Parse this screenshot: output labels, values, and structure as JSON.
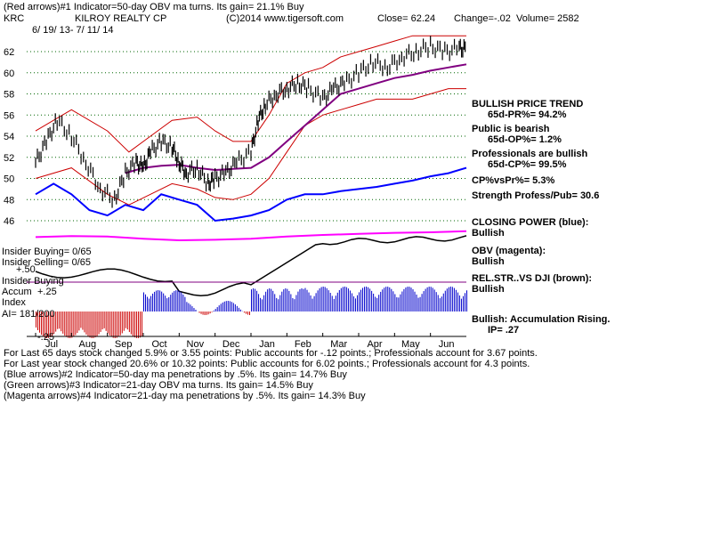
{
  "header": {
    "line1": "(Red arrows)#1 Indicator=50-day OBV ma turns. Its gain= 21.1% Buy",
    "ticker": "KRC",
    "company": "KILROY REALTY CP",
    "copyright": "(C)2014 www.tigersoft.com",
    "close": "Close=  62.24",
    "change": "Change=-.02",
    "volume": "Volume= 2582",
    "daterange": "6/ 19/ 13-  7/ 11/ 14"
  },
  "right_panel": {
    "items": [
      {
        "text": "BULLISH PRICE TREND"
      },
      {
        "text": "65d-PR%= 94.2%"
      },
      {
        "text": "Public is bearish"
      },
      {
        "text": "65d-OP%= 1.2%"
      },
      {
        "text": "Professionals are bullish"
      },
      {
        "text": "65d-CP%= 99.5%"
      },
      {
        "text": "CP%vsPr%=  5.3%"
      },
      {
        "text": "Strength Profess/Pub= 30.6"
      },
      {
        "text": "CLOSING POWER (blue):"
      },
      {
        "text": "Bullish"
      },
      {
        "text": "OBV (magenta):"
      },
      {
        "text": "Bullish"
      },
      {
        "text": "REL.STR..VS DJI (brown):"
      },
      {
        "text": "Bullish"
      },
      {
        "text": "Bullish: Accumulation Rising."
      },
      {
        "text": "IP=  .27"
      }
    ]
  },
  "left_labels": {
    "insider_buying_1": "Insider Buying= 0/65",
    "insider_selling": "Insider Selling= 0/65",
    "plus50": "+.50",
    "insider_buying_2": "Insider Buying",
    "accum": "Accum",
    "plus25": "+.25",
    "index": "Index",
    "ai": "AI= 181/200",
    "minus25": "-.25"
  },
  "footer": {
    "lines": [
      "For Last 65 days stock changed  5.9% or  3.55 points:  Public accounts for -.12 points.;  Professionals account for  3.67 points.",
      "For Last year stock changed  20.6% or  10.32 points:  Public accounts for  6.02 points.;  Professionals account for  4.3 points.",
      "(Blue arrows)#2 Indicator=50-day ma penetrations by .5%. Its gain= 14.7% Buy",
      "(Green arrows)#3 Indicator=21-day OBV ma turns. Its gain= 14.5% Buy",
      "(Magenta arrows)#4 Indicator=21-day ma penetrations by .5%. Its gain= 14.3% Buy"
    ]
  },
  "colors": {
    "price": "#000000",
    "ma50": "#800080",
    "bands": "#cc0000",
    "closing_power": "#0000ff",
    "obv": "#ff00ff",
    "rel_str": "#000000",
    "accum_pos": "#0000cc",
    "accum_neg": "#cc0000",
    "grid": "#006600",
    "hline": "#800080"
  },
  "chart_data": {
    "type": "line",
    "x_ticks": [
      "Jul",
      "Aug",
      "Sep",
      "Oct",
      "Nov",
      "Dec",
      "Jan",
      "Feb",
      "Mar",
      "Apr",
      "May",
      "Jun",
      "Jul"
    ],
    "y_ticks": [
      46,
      48,
      50,
      52,
      54,
      56,
      58,
      60,
      62
    ],
    "ylim": [
      45,
      63.5
    ],
    "price_series": {
      "x": [
        0,
        0.3,
        0.6,
        1,
        1.4,
        1.8,
        2.2,
        2.5,
        2.8,
        3.0,
        3.2,
        3.5,
        3.8,
        4.0,
        4.2,
        4.5,
        4.8,
        5.0,
        5.3,
        5.6,
        6.0,
        6.2,
        6.4,
        6.7,
        7.0,
        7.3,
        7.6,
        8.0,
        8.3,
        8.6,
        9.0,
        9.4,
        9.8,
        10.2,
        10.6,
        11.0,
        11.4,
        11.8,
        12.0
      ],
      "y": [
        51.5,
        53.5,
        55.5,
        54.0,
        51.5,
        49.0,
        48.0,
        50.5,
        51.5,
        51.0,
        52.5,
        53.5,
        53.0,
        51.5,
        50.5,
        51.0,
        49.5,
        50.0,
        50.5,
        51.5,
        52.5,
        55.5,
        57.0,
        58.0,
        58.5,
        59.0,
        58.5,
        57.5,
        58.5,
        59.0,
        60.0,
        61.0,
        60.5,
        61.5,
        62.0,
        62.5,
        62.0,
        62.3,
        62.24
      ]
    },
    "ma50": {
      "x": [
        2.5,
        3.0,
        3.5,
        4.0,
        4.5,
        5.0,
        5.5,
        6.0,
        6.5,
        7.0,
        7.5,
        8.0,
        8.5,
        9.0,
        9.5,
        10.0,
        10.5,
        11.0,
        11.5,
        12.0
      ],
      "y": [
        50.5,
        51.0,
        51.2,
        51.3,
        51.0,
        50.8,
        50.9,
        51.0,
        52.0,
        53.5,
        55.0,
        56.5,
        58.0,
        58.5,
        59.0,
        59.5,
        59.8,
        60.2,
        60.5,
        60.8
      ]
    },
    "upper_band": {
      "x": [
        0,
        1,
        2,
        2.6,
        3.2,
        3.8,
        4.5,
        5.0,
        5.5,
        6.0,
        6.5,
        7.0,
        7.5,
        8.0,
        8.5,
        9.0,
        9.5,
        10.0,
        10.5,
        11.0,
        11.5,
        12.0
      ],
      "y": [
        54.5,
        56.5,
        54.5,
        52.5,
        54.0,
        55.5,
        55.8,
        54.5,
        53.5,
        53.5,
        56.0,
        59.0,
        60.0,
        60.5,
        61.5,
        62.0,
        62.5,
        63.0,
        63.5,
        63.5,
        63.5,
        63.5
      ]
    },
    "lower_band": {
      "x": [
        0,
        1,
        2,
        2.6,
        3.2,
        3.8,
        4.5,
        5.0,
        5.5,
        6.0,
        6.5,
        7.0,
        7.5,
        8.0,
        8.5,
        9.0,
        9.5,
        10.0,
        10.5,
        11.0,
        11.5,
        12.0
      ],
      "y": [
        50.0,
        51.0,
        48.5,
        47.5,
        48.5,
        49.5,
        49.0,
        48.2,
        48.0,
        48.5,
        50.0,
        52.5,
        55.0,
        56.0,
        56.5,
        57.0,
        57.5,
        57.5,
        57.5,
        58.0,
        58.5,
        58.5
      ]
    },
    "closing_power": {
      "x": [
        0,
        0.5,
        1,
        1.5,
        2,
        2.5,
        3,
        3.5,
        4,
        4.5,
        5,
        5.5,
        6,
        6.5,
        7,
        7.5,
        8,
        8.5,
        9,
        9.5,
        10,
        10.5,
        11,
        11.5,
        12
      ],
      "y": [
        48.5,
        49.5,
        48.5,
        47.0,
        46.5,
        47.5,
        47.0,
        48.5,
        48.0,
        47.5,
        46.0,
        46.2,
        46.5,
        47.0,
        48.0,
        48.5,
        48.5,
        48.8,
        49.0,
        49.2,
        49.5,
        49.8,
        50.2,
        50.5,
        51.0
      ]
    },
    "obv": {
      "x": [
        0,
        1,
        2,
        3,
        4,
        5,
        6,
        7,
        8,
        9,
        10,
        11,
        12
      ],
      "y": [
        45.1,
        45.3,
        45.2,
        44.8,
        44.5,
        44.6,
        44.8,
        45.2,
        45.5,
        45.7,
        45.9,
        46.0,
        46.2
      ]
    }
  }
}
